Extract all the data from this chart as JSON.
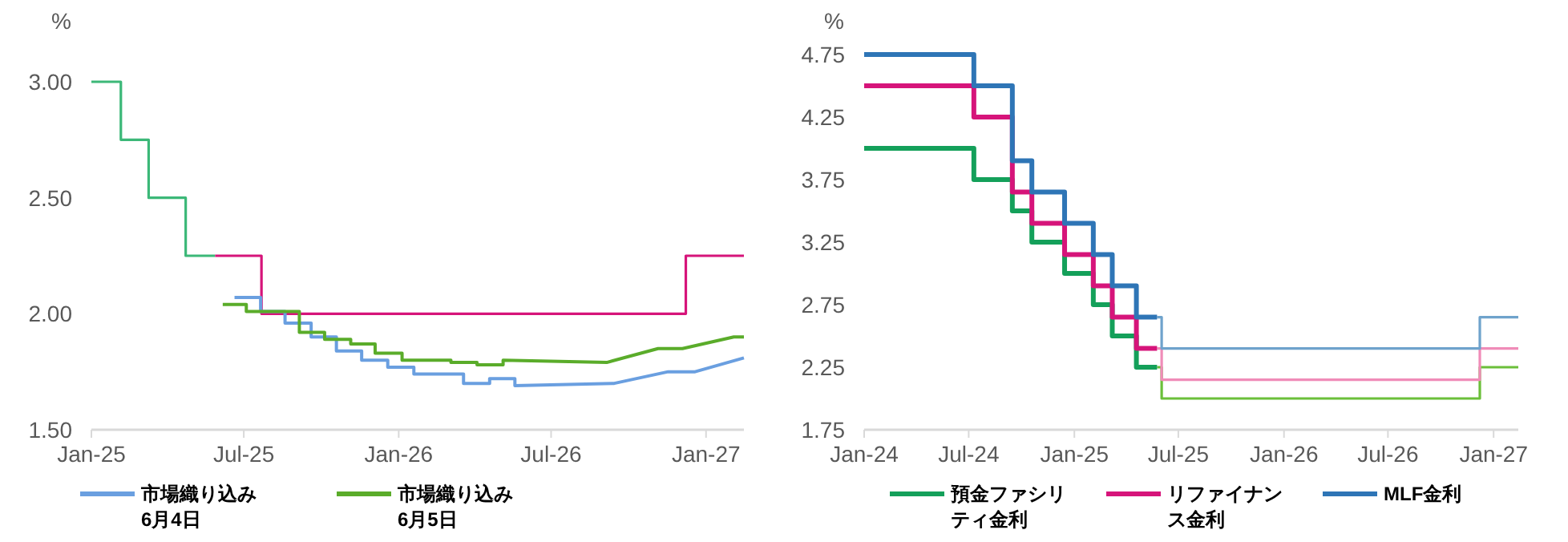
{
  "chart_data": [
    {
      "type": "line",
      "ylabel": "%",
      "xlim": [
        "2025-01-01",
        "2027-02-15"
      ],
      "ylim": [
        1.5,
        3
      ],
      "xticks": [
        {
          "value": "2025-01-01",
          "label": "Jan-25"
        },
        {
          "value": "2025-07-01",
          "label": "Jul-25"
        },
        {
          "value": "2026-01-01",
          "label": "Jan-26"
        },
        {
          "value": "2026-07-01",
          "label": "Jul-26"
        },
        {
          "value": "2027-01-01",
          "label": "Jan-27"
        }
      ],
      "yticks": [
        {
          "value": 1.5,
          "label": "1.50"
        },
        {
          "value": 2,
          "label": "2.00"
        },
        {
          "value": 2.5,
          "label": "2.50"
        },
        {
          "value": 3,
          "label": "3.00"
        }
      ],
      "grid": false,
      "legend": "bottom",
      "line_style": "solid",
      "marker": "none",
      "series": [
        {
          "type": "step",
          "color": "#3cb878",
          "x": [
            "2025-01-01",
            "2025-02-05",
            "2025-03-10",
            "2025-04-23",
            "2025-05-28"
          ],
          "values": [
            3.0,
            2.75,
            2.5,
            2.25,
            2.25
          ]
        },
        {
          "type": "step",
          "color": "#d6147a",
          "x": [
            "2025-05-28",
            "2025-07-22",
            "2026-12-08",
            "2027-02-15"
          ],
          "values": [
            2.25,
            2.0,
            2.25,
            2.25
          ]
        },
        {
          "name": "市場織り込み 6月4日",
          "color": "#6a9fe0",
          "x": [
            "2025-06-20",
            "2025-07-21",
            "2025-07-21",
            "2025-08-19",
            "2025-08-19",
            "2025-09-19",
            "2025-09-19",
            "2025-10-19",
            "2025-10-19",
            "2025-11-18",
            "2025-11-18",
            "2025-12-19",
            "2025-12-19",
            "2026-01-19",
            "2026-01-19",
            "2026-03-19",
            "2026-03-19",
            "2026-04-19",
            "2026-04-19",
            "2026-05-19",
            "2026-05-19",
            "2026-09-14",
            "2026-11-17",
            "2026-12-19",
            "2027-02-15"
          ],
          "values": [
            2.07,
            2.07,
            2.01,
            2.01,
            1.96,
            1.96,
            1.9,
            1.9,
            1.84,
            1.84,
            1.8,
            1.8,
            1.77,
            1.77,
            1.74,
            1.74,
            1.7,
            1.7,
            1.72,
            1.72,
            1.69,
            1.7,
            1.75,
            1.75,
            1.81
          ]
        },
        {
          "name": "市場織り込み 6月5日",
          "color": "#5aac2a",
          "x": [
            "2025-06-06",
            "2025-07-04",
            "2025-07-04",
            "2025-09-05",
            "2025-09-05",
            "2025-10-05",
            "2025-10-05",
            "2025-11-05",
            "2025-11-05",
            "2025-12-04",
            "2025-12-04",
            "2026-01-05",
            "2026-01-05",
            "2026-03-04",
            "2026-03-04",
            "2026-04-04",
            "2026-04-04",
            "2026-05-05",
            "2026-05-05",
            "2026-09-05",
            "2026-11-05",
            "2026-12-04",
            "2027-02-03",
            "2027-02-15"
          ],
          "values": [
            2.04,
            2.04,
            2.01,
            2.01,
            1.92,
            1.92,
            1.89,
            1.89,
            1.87,
            1.87,
            1.83,
            1.83,
            1.8,
            1.8,
            1.79,
            1.79,
            1.78,
            1.78,
            1.8,
            1.79,
            1.85,
            1.85,
            1.9,
            1.9
          ]
        }
      ]
    },
    {
      "type": "step",
      "ylabel": "%",
      "xlim": [
        "2024-01-01",
        "2027-02-13"
      ],
      "ylim": [
        1.75,
        4.75
      ],
      "xticks": [
        {
          "value": "2024-01-01",
          "label": "Jan-24"
        },
        {
          "value": "2024-07-01",
          "label": "Jul-24"
        },
        {
          "value": "2025-01-01",
          "label": "Jan-25"
        },
        {
          "value": "2025-07-01",
          "label": "Jul-25"
        },
        {
          "value": "2026-01-01",
          "label": "Jan-26"
        },
        {
          "value": "2026-07-01",
          "label": "Jul-26"
        },
        {
          "value": "2027-01-01",
          "label": "Jan-27"
        }
      ],
      "yticks": [
        1.75,
        2.25,
        2.75,
        3.25,
        3.75,
        4.25,
        4.75
      ],
      "grid": false,
      "legend": "bottom",
      "line_style": "solid",
      "marker": "none",
      "series": [
        {
          "color": "#6bbf3a",
          "x": [
            "2025-05-25",
            "2025-06-02",
            "2026-12-08",
            "2027-02-13"
          ],
          "values": [
            2.25,
            2.0,
            2.25,
            2.25
          ]
        },
        {
          "color": "#f08cb8",
          "x": [
            "2025-05-25",
            "2025-06-02",
            "2026-12-08",
            "2027-02-13"
          ],
          "values": [
            2.4,
            2.15,
            2.4,
            2.4
          ]
        },
        {
          "color": "#6fa3cc",
          "x": [
            "2025-05-25",
            "2025-06-02",
            "2026-12-08",
            "2027-02-13"
          ],
          "values": [
            2.65,
            2.4,
            2.65,
            2.65
          ]
        },
        {
          "name": "預金ファシリティ金利",
          "color": "#14a05a",
          "x": [
            "2024-01-01",
            "2024-07-10",
            "2024-09-15",
            "2024-10-19",
            "2024-12-15",
            "2025-02-03",
            "2025-03-08",
            "2025-04-19",
            "2025-05-25"
          ],
          "values": [
            4.0,
            3.75,
            3.5,
            3.25,
            3.0,
            2.75,
            2.5,
            2.25,
            2.25
          ]
        },
        {
          "name": "リファイナンス金利",
          "color": "#d6147a",
          "x": [
            "2024-01-01",
            "2024-07-10",
            "2024-09-15",
            "2024-10-19",
            "2024-12-15",
            "2025-02-03",
            "2025-03-08",
            "2025-04-19",
            "2025-05-25"
          ],
          "values": [
            4.5,
            4.25,
            3.65,
            3.4,
            3.15,
            2.9,
            2.65,
            2.4,
            2.4
          ]
        },
        {
          "name": "MLF金利",
          "color": "#2e75b6",
          "x": [
            "2024-01-01",
            "2024-07-10",
            "2024-09-15",
            "2024-10-19",
            "2024-12-15",
            "2025-02-03",
            "2025-03-08",
            "2025-04-19",
            "2025-05-25"
          ],
          "values": [
            4.75,
            4.5,
            3.9,
            3.65,
            3.4,
            3.15,
            2.9,
            2.65,
            2.65
          ]
        }
      ]
    }
  ]
}
